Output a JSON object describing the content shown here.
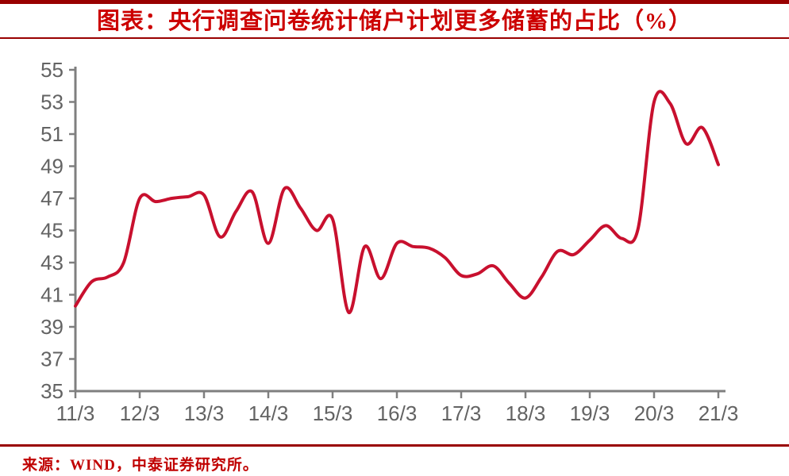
{
  "page": {
    "title": "图表：央行调查问卷统计储户计划更多储蓄的占比（%）",
    "source_note": "来源：WIND，中泰证券研究所。"
  },
  "colors": {
    "line": "#c8102e",
    "title_text": "#cc0000",
    "rule": "#990000",
    "axis": "#7f7f7f",
    "tick_label": "#636363",
    "source_text": "#c00000"
  },
  "chart_data": {
    "type": "line",
    "title": "央行调查问卷统计储户计划更多储蓄的占比（%）",
    "xlabel": "",
    "ylabel": "",
    "ylim": [
      35,
      55
    ],
    "y_ticks": [
      55,
      53,
      51,
      49,
      47,
      45,
      43,
      41,
      39,
      37,
      35
    ],
    "x_tick_labels": [
      "11/3",
      "12/3",
      "13/3",
      "14/3",
      "15/3",
      "16/3",
      "17/3",
      "18/3",
      "19/3",
      "20/3",
      "21/3"
    ],
    "grid": false,
    "legend_position": "none",
    "categories": [
      "11/3",
      "11/6",
      "11/9",
      "11/12",
      "12/3",
      "12/6",
      "12/9",
      "12/12",
      "13/3",
      "13/6",
      "13/9",
      "13/12",
      "14/3",
      "14/6",
      "14/9",
      "14/12",
      "15/3",
      "15/6",
      "15/9",
      "15/12",
      "16/3",
      "16/6",
      "16/9",
      "16/12",
      "17/3",
      "17/6",
      "17/9",
      "17/12",
      "18/3",
      "18/6",
      "18/9",
      "18/12",
      "19/3",
      "19/6",
      "19/9",
      "19/12",
      "20/3",
      "20/6",
      "20/9",
      "20/12",
      "21/3"
    ],
    "series": [
      {
        "name": "储户计划更多储蓄的占比(%)",
        "values": [
          40.3,
          41.8,
          42.1,
          43.0,
          47.0,
          46.8,
          47.0,
          47.1,
          47.2,
          44.6,
          46.2,
          47.4,
          44.2,
          47.6,
          46.4,
          45.0,
          45.7,
          39.9,
          44.0,
          42.0,
          44.2,
          44.0,
          43.9,
          43.3,
          42.2,
          42.3,
          42.8,
          41.7,
          40.8,
          42.1,
          43.7,
          43.5,
          44.4,
          45.3,
          44.5,
          45.1,
          53.0,
          52.9,
          50.4,
          51.4,
          49.1
        ]
      }
    ]
  }
}
